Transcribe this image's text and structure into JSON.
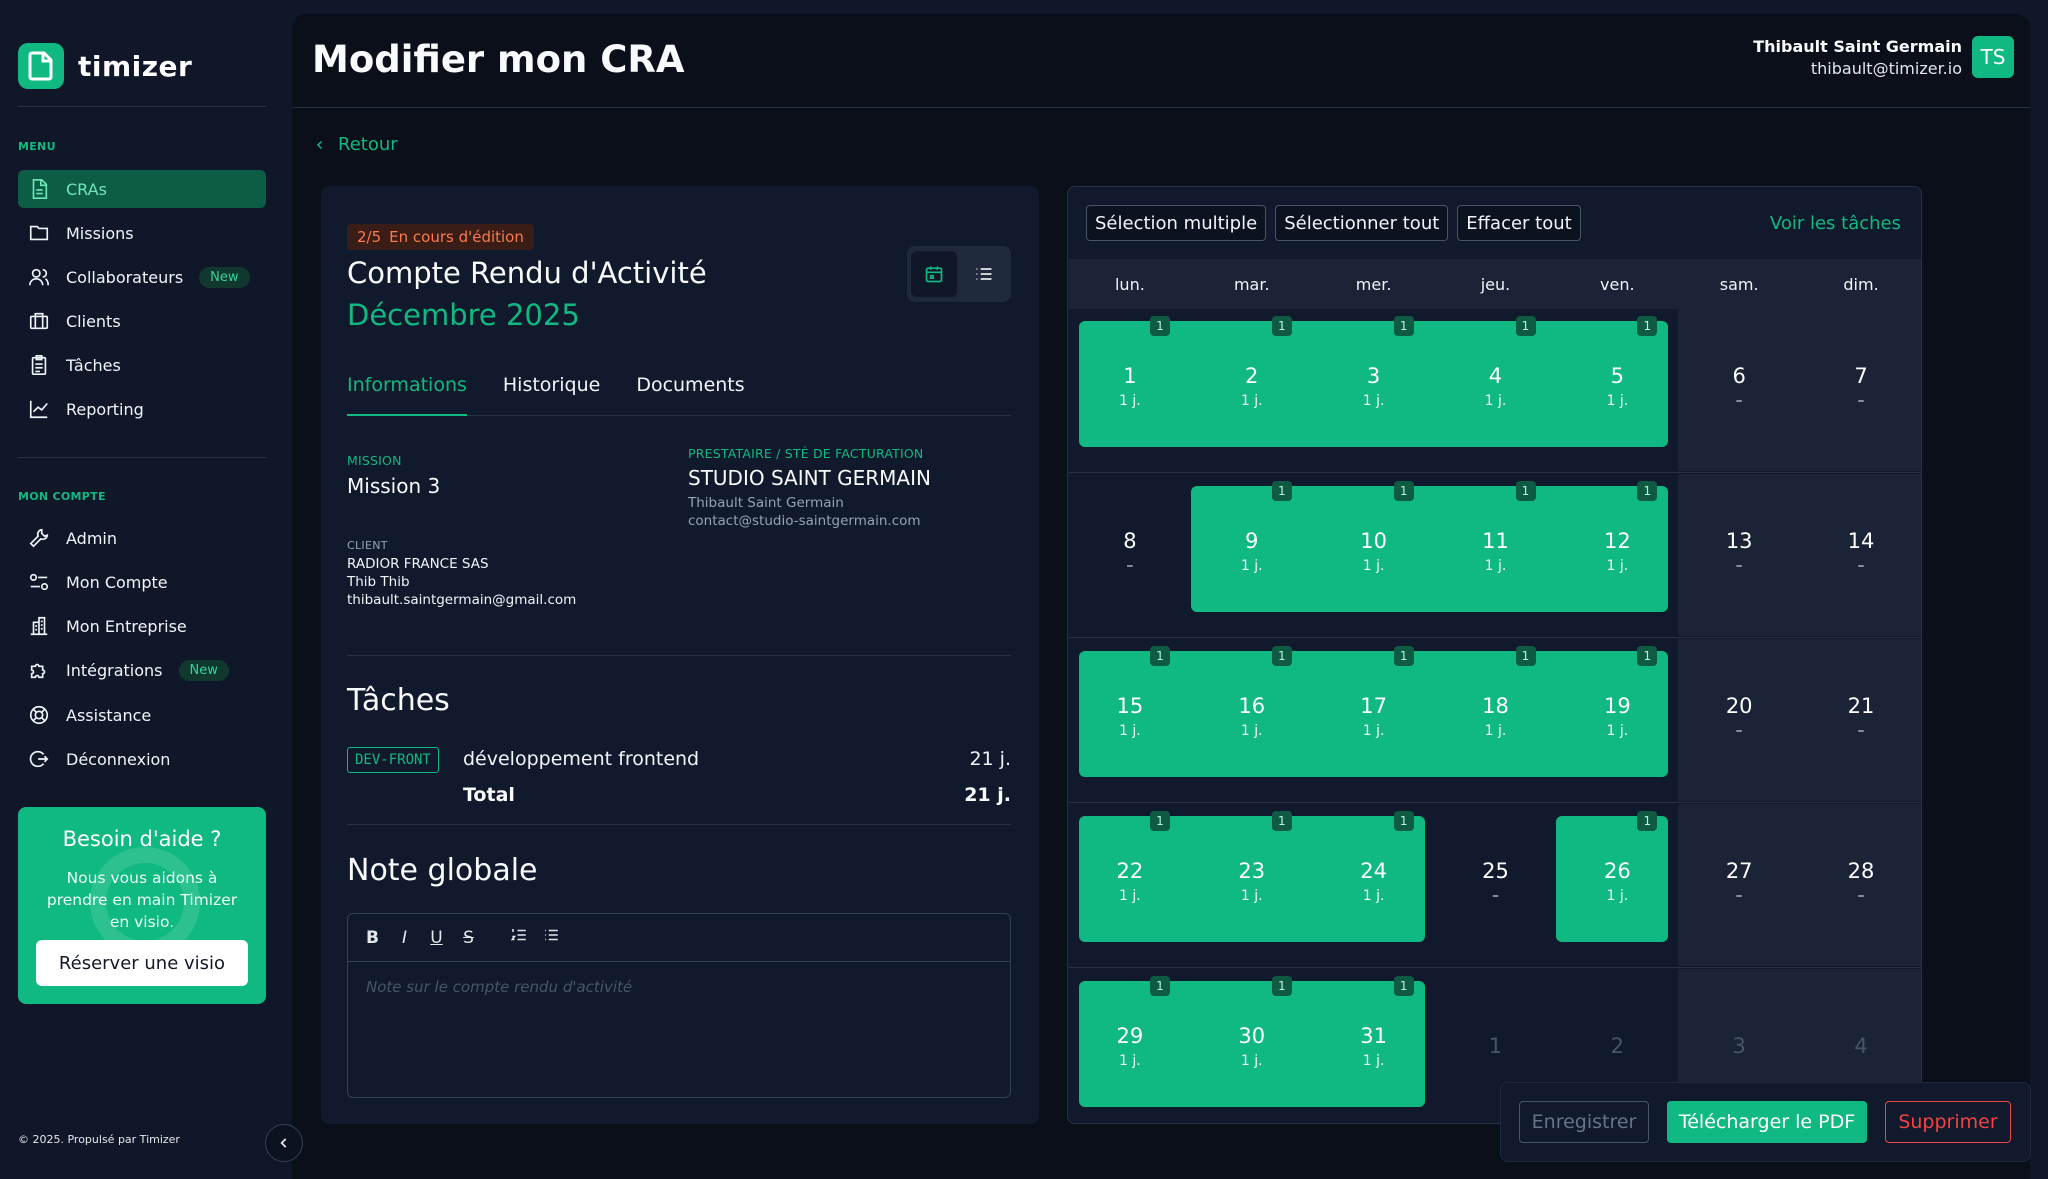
{
  "app": {
    "name": "timizer"
  },
  "sidebar": {
    "menu_label": "MENU",
    "menu_items": [
      {
        "label": "CRAs",
        "icon": "file-icon",
        "active": true
      },
      {
        "label": "Missions",
        "icon": "folder-icon"
      },
      {
        "label": "Collaborateurs",
        "icon": "users-icon",
        "badge": "New"
      },
      {
        "label": "Clients",
        "icon": "briefcase-icon"
      },
      {
        "label": "Tâches",
        "icon": "clipboard-icon"
      },
      {
        "label": "Reporting",
        "icon": "chart-line-icon"
      }
    ],
    "account_label": "MON COMPTE",
    "account_items": [
      {
        "label": "Admin",
        "icon": "wrench-icon"
      },
      {
        "label": "Mon Compte",
        "icon": "user-settings-icon"
      },
      {
        "label": "Mon Entreprise",
        "icon": "building-icon"
      },
      {
        "label": "Intégrations",
        "icon": "puzzle-icon",
        "badge": "New"
      },
      {
        "label": "Assistance",
        "icon": "lifebuoy-icon"
      },
      {
        "label": "Déconnexion",
        "icon": "logout-icon"
      }
    ],
    "help": {
      "title": "Besoin d'aide ?",
      "text": "Nous vous aidons à prendre en main Timizer en visio.",
      "button": "Réserver une visio"
    },
    "footer": "© 2025. Propulsé par Timizer"
  },
  "header": {
    "title": "Modifier mon CRA",
    "user_name": "Thibault Saint Germain",
    "user_email": "thibault@timizer.io",
    "avatar_initials": "TS"
  },
  "back_label": "Retour",
  "cra": {
    "status_step": "2/5",
    "status_text": "En cours d'édition",
    "title": "Compte Rendu d'Activité",
    "month": "Décembre 2025",
    "tabs": [
      "Informations",
      "Historique",
      "Documents"
    ],
    "mission_label": "MISSION",
    "mission_value": "Mission 3",
    "client_label": "CLIENT",
    "client_name": "RADIOR FRANCE SAS",
    "client_contact": "Thib Thib",
    "client_email": "thibault.saintgermain@gmail.com",
    "provider_label": "PRESTATAIRE / STÉ DE FACTURATION",
    "provider_name": "STUDIO SAINT GERMAIN",
    "provider_contact": "Thibault Saint Germain",
    "provider_email": "contact@studio-saintgermain.com",
    "tasks_title": "Tâches",
    "task_code": "DEV-FRONT",
    "task_name": "développement frontend",
    "task_days": "21 j.",
    "total_label": "Total",
    "total_days": "21 j.",
    "note_title": "Note globale",
    "note_placeholder": "Note sur le compte rendu d'activité",
    "editor_tools": [
      "B",
      "I",
      "U",
      "S",
      "ol",
      "ul"
    ]
  },
  "calendar": {
    "toolbar": [
      "Sélection multiple",
      "Sélectionner tout",
      "Effacer tout"
    ],
    "see_tasks": "Voir les tâches",
    "weekdays": [
      "lun.",
      "mar.",
      "mer.",
      "jeu.",
      "ven.",
      "sam.",
      "dim."
    ],
    "weeks": [
      [
        {
          "n": "1",
          "w": true
        },
        {
          "n": "2",
          "w": true
        },
        {
          "n": "3",
          "w": true
        },
        {
          "n": "4",
          "w": true
        },
        {
          "n": "5",
          "w": true
        },
        {
          "n": "6"
        },
        {
          "n": "7"
        }
      ],
      [
        {
          "n": "8"
        },
        {
          "n": "9",
          "w": true
        },
        {
          "n": "10",
          "w": true
        },
        {
          "n": "11",
          "w": true
        },
        {
          "n": "12",
          "w": true
        },
        {
          "n": "13"
        },
        {
          "n": "14"
        }
      ],
      [
        {
          "n": "15",
          "w": true
        },
        {
          "n": "16",
          "w": true
        },
        {
          "n": "17",
          "w": true
        },
        {
          "n": "18",
          "w": true
        },
        {
          "n": "19",
          "w": true
        },
        {
          "n": "20"
        },
        {
          "n": "21"
        }
      ],
      [
        {
          "n": "22",
          "w": true
        },
        {
          "n": "23",
          "w": true
        },
        {
          "n": "24",
          "w": true
        },
        {
          "n": "25"
        },
        {
          "n": "26",
          "w": true
        },
        {
          "n": "27"
        },
        {
          "n": "28"
        }
      ],
      [
        {
          "n": "29",
          "w": true
        },
        {
          "n": "30",
          "w": true
        },
        {
          "n": "31",
          "w": true
        },
        {
          "n": "1",
          "muted": true
        },
        {
          "n": "2",
          "muted": true
        },
        {
          "n": "3",
          "muted": true
        },
        {
          "n": "4",
          "muted": true
        }
      ]
    ],
    "worked_label": "1 j.",
    "empty_label": "–",
    "badge_value": "1"
  },
  "actions": {
    "save": "Enregistrer",
    "pdf": "Télécharger le PDF",
    "delete": "Supprimer"
  },
  "colors": {
    "accent": "#10b981",
    "danger": "#ef4444",
    "status": "#fb7a4a"
  }
}
